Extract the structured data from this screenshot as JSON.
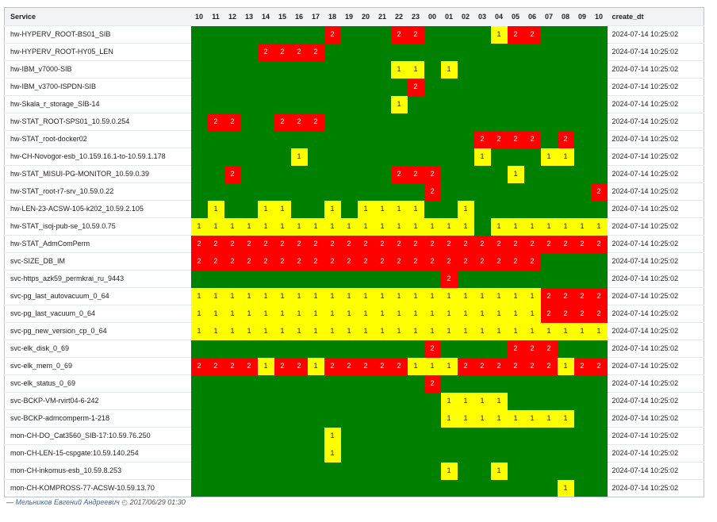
{
  "table": {
    "service_header": "Service",
    "create_header": "create_dt",
    "hours": [
      "10",
      "11",
      "12",
      "13",
      "14",
      "15",
      "16",
      "17",
      "18",
      "19",
      "20",
      "21",
      "22",
      "23",
      "00",
      "01",
      "02",
      "03",
      "04",
      "05",
      "06",
      "07",
      "08",
      "09",
      "10"
    ],
    "rows": [
      {
        "service": "hw-HYPERV_ROOT-BS01_SIB",
        "values": [
          0,
          0,
          0,
          0,
          0,
          0,
          0,
          0,
          2,
          0,
          0,
          0,
          2,
          2,
          0,
          0,
          0,
          0,
          1,
          2,
          2,
          0,
          0,
          0,
          0
        ],
        "create_dt": "2024-07-14 10:25:02"
      },
      {
        "service": "hw-HYPERV_ROOT-HY05_LEN",
        "values": [
          0,
          0,
          0,
          0,
          2,
          2,
          2,
          2,
          0,
          0,
          0,
          0,
          0,
          0,
          0,
          0,
          0,
          0,
          0,
          0,
          0,
          0,
          0,
          0,
          0
        ],
        "create_dt": "2024-07-14 10:25:02"
      },
      {
        "service": "hw-IBM_v7000-SIB",
        "values": [
          0,
          0,
          0,
          0,
          0,
          0,
          0,
          0,
          0,
          0,
          0,
          0,
          1,
          1,
          0,
          1,
          0,
          0,
          0,
          0,
          0,
          0,
          0,
          0,
          0
        ],
        "create_dt": "2024-07-14 10:25:02"
      },
      {
        "service": "hw-IBM_v3700-ISPDN-SIB",
        "values": [
          0,
          0,
          0,
          0,
          0,
          0,
          0,
          0,
          0,
          0,
          0,
          0,
          0,
          2,
          0,
          0,
          0,
          0,
          0,
          0,
          0,
          0,
          0,
          0,
          0
        ],
        "create_dt": "2024-07-14 10:25:02"
      },
      {
        "service": "hw-Skala_r_storage_SIB-14",
        "values": [
          0,
          0,
          0,
          0,
          0,
          0,
          0,
          0,
          0,
          0,
          0,
          0,
          1,
          0,
          0,
          0,
          0,
          0,
          0,
          0,
          0,
          0,
          0,
          0,
          0
        ],
        "create_dt": "2024-07-14 10:25:02"
      },
      {
        "service": "hw-STAT_ROOT-SPS01_10.59.0.254",
        "values": [
          0,
          2,
          2,
          0,
          0,
          2,
          2,
          2,
          0,
          0,
          0,
          0,
          0,
          0,
          0,
          0,
          0,
          0,
          0,
          0,
          0,
          0,
          0,
          0,
          0
        ],
        "create_dt": "2024-07-14 10:25:02"
      },
      {
        "service": "hw-STAT_root-docker02",
        "values": [
          0,
          0,
          0,
          0,
          0,
          0,
          0,
          0,
          0,
          0,
          0,
          0,
          0,
          0,
          0,
          0,
          0,
          2,
          2,
          2,
          2,
          0,
          2,
          0,
          0
        ],
        "create_dt": "2024-07-14 10:25:02"
      },
      {
        "service": "hw-CH-Novogor-esb_10.159.16.1-to-10.59.1.178",
        "values": [
          0,
          0,
          0,
          0,
          0,
          0,
          1,
          0,
          0,
          0,
          0,
          0,
          0,
          0,
          0,
          0,
          0,
          1,
          0,
          0,
          0,
          1,
          1,
          0,
          0
        ],
        "create_dt": "2024-07-14 10:25:02"
      },
      {
        "service": "hw-STAT_MISUI-PG-MONITOR_10.59.0.39",
        "values": [
          0,
          0,
          2,
          0,
          0,
          0,
          0,
          0,
          0,
          0,
          0,
          0,
          2,
          2,
          2,
          0,
          0,
          0,
          0,
          1,
          0,
          0,
          0,
          0,
          0
        ],
        "create_dt": "2024-07-14 10:25:02"
      },
      {
        "service": "hw-STAT_root-r7-srv_10.59.0.22",
        "values": [
          0,
          0,
          0,
          0,
          0,
          0,
          0,
          0,
          0,
          0,
          0,
          0,
          0,
          0,
          2,
          0,
          0,
          0,
          0,
          0,
          0,
          0,
          0,
          0,
          2
        ],
        "create_dt": "2024-07-14 10:25:02"
      },
      {
        "service": "hw-LEN-23-ACSW-105-k202_10.59.2.105",
        "values": [
          0,
          1,
          0,
          0,
          1,
          1,
          0,
          0,
          1,
          0,
          1,
          1,
          1,
          1,
          0,
          0,
          1,
          0,
          0,
          0,
          0,
          0,
          0,
          0,
          0
        ],
        "create_dt": "2024-07-14 10:25:02"
      },
      {
        "service": "hw-STAT_isoj-pub-se_10.59.0.75",
        "values": [
          1,
          1,
          1,
          1,
          1,
          1,
          1,
          1,
          1,
          1,
          1,
          1,
          1,
          1,
          1,
          1,
          1,
          0,
          1,
          1,
          1,
          1,
          1,
          1,
          1
        ],
        "create_dt": "2024-07-14 10:25:02"
      },
      {
        "service": "hw-STAT_AdmComPerm",
        "values": [
          2,
          2,
          2,
          2,
          2,
          2,
          2,
          2,
          2,
          2,
          2,
          2,
          2,
          2,
          2,
          2,
          2,
          2,
          2,
          2,
          2,
          2,
          2,
          2,
          2
        ],
        "create_dt": "2024-07-14 10:25:02"
      },
      {
        "service": "svc-SIZE_DB_IM",
        "values": [
          2,
          2,
          2,
          2,
          2,
          2,
          2,
          2,
          2,
          2,
          2,
          2,
          2,
          2,
          2,
          2,
          2,
          2,
          2,
          2,
          2,
          0,
          0,
          0,
          0
        ],
        "create_dt": "2024-07-14 10:25:02"
      },
      {
        "service": "svc-https_azk59_permkrai_ru_9443",
        "values": [
          0,
          0,
          0,
          0,
          0,
          0,
          0,
          0,
          0,
          0,
          0,
          0,
          0,
          0,
          0,
          2,
          0,
          0,
          0,
          0,
          0,
          0,
          0,
          0,
          0
        ],
        "create_dt": "2024-07-14 10:25:02"
      },
      {
        "service": "svc-pg_last_autovacuum_0_64",
        "values": [
          1,
          1,
          1,
          1,
          1,
          1,
          1,
          1,
          1,
          1,
          1,
          1,
          1,
          1,
          1,
          1,
          1,
          1,
          1,
          1,
          1,
          2,
          2,
          2,
          2
        ],
        "create_dt": "2024-07-14 10:25:02"
      },
      {
        "service": "svc-pg_last_vacuum_0_64",
        "values": [
          1,
          1,
          1,
          1,
          1,
          1,
          1,
          1,
          1,
          1,
          1,
          1,
          1,
          1,
          1,
          1,
          1,
          1,
          1,
          1,
          1,
          2,
          2,
          2,
          2
        ],
        "create_dt": "2024-07-14 10:25:02"
      },
      {
        "service": "svc-pg_new_version_cp_0_64",
        "values": [
          1,
          1,
          1,
          1,
          1,
          1,
          1,
          1,
          1,
          1,
          1,
          1,
          1,
          1,
          1,
          1,
          1,
          1,
          1,
          1,
          1,
          1,
          1,
          1,
          1
        ],
        "create_dt": "2024-07-14 10:25:02"
      },
      {
        "service": "svc-elk_disk_0_69",
        "values": [
          0,
          0,
          0,
          0,
          0,
          0,
          0,
          0,
          0,
          0,
          0,
          0,
          0,
          0,
          2,
          0,
          0,
          0,
          0,
          2,
          2,
          2,
          0,
          0,
          0
        ],
        "create_dt": "2024-07-14 10:25:02"
      },
      {
        "service": "svc-elk_mem_0_69",
        "values": [
          2,
          2,
          2,
          2,
          1,
          2,
          2,
          1,
          2,
          2,
          2,
          2,
          2,
          1,
          1,
          1,
          2,
          2,
          2,
          2,
          2,
          2,
          1,
          2,
          2
        ],
        "create_dt": "2024-07-14 10:25:02"
      },
      {
        "service": "svc-elk_status_0_69",
        "values": [
          0,
          0,
          0,
          0,
          0,
          0,
          0,
          0,
          0,
          0,
          0,
          0,
          0,
          0,
          2,
          0,
          0,
          0,
          0,
          0,
          0,
          0,
          0,
          0,
          0
        ],
        "create_dt": "2024-07-14 10:25:02"
      },
      {
        "service": "svc-BCKP-VM-rvirt04-6-242",
        "values": [
          0,
          0,
          0,
          0,
          0,
          0,
          0,
          0,
          0,
          0,
          0,
          0,
          0,
          0,
          0,
          1,
          1,
          1,
          1,
          0,
          0,
          0,
          0,
          0,
          0
        ],
        "create_dt": "2024-07-14 10:25:02"
      },
      {
        "service": "svc-BCKP-admcomperm-1-218",
        "values": [
          0,
          0,
          0,
          0,
          0,
          0,
          0,
          0,
          0,
          0,
          0,
          0,
          0,
          0,
          0,
          1,
          1,
          1,
          1,
          1,
          1,
          1,
          1,
          0,
          0
        ],
        "create_dt": "2024-07-14 10:25:02"
      },
      {
        "service": "mon-CH-DO_Cat3560_SIB-17:10.59.76.250",
        "values": [
          0,
          0,
          0,
          0,
          0,
          0,
          0,
          0,
          1,
          0,
          0,
          0,
          0,
          0,
          0,
          0,
          0,
          0,
          0,
          0,
          0,
          0,
          0,
          0,
          0
        ],
        "create_dt": "2024-07-14 10:25:02"
      },
      {
        "service": "mon-CH-LEN-15-cspgate:10.59.140.254",
        "values": [
          0,
          0,
          0,
          0,
          0,
          0,
          0,
          0,
          1,
          0,
          0,
          0,
          0,
          0,
          0,
          0,
          0,
          0,
          0,
          0,
          0,
          0,
          0,
          0,
          0
        ],
        "create_dt": "2024-07-14 10:25:02"
      },
      {
        "service": "mon-CH-inkomus-esb_10.59.8.253",
        "values": [
          0,
          0,
          0,
          0,
          0,
          0,
          0,
          0,
          0,
          0,
          0,
          0,
          0,
          0,
          0,
          1,
          0,
          0,
          1,
          0,
          0,
          0,
          0,
          0,
          0
        ],
        "create_dt": "2024-07-14 10:25:02"
      },
      {
        "service": "mon-CH-KOMPROSS-77-ACSW-10.59.13.70",
        "values": [
          0,
          0,
          0,
          0,
          0,
          0,
          0,
          0,
          0,
          0,
          0,
          0,
          0,
          0,
          0,
          0,
          0,
          0,
          0,
          0,
          0,
          0,
          1,
          0,
          0
        ],
        "create_dt": "2024-07-14 10:25:02"
      }
    ]
  },
  "footer": {
    "dash": "—",
    "author": "Мельников Евгений Андреевич",
    "clock_icon": "clock-icon",
    "datetime": "2017/06/29 01:30"
  },
  "colors": {
    "ok": "#008000",
    "warn": "#ffff00",
    "crit": "#ff0000"
  }
}
